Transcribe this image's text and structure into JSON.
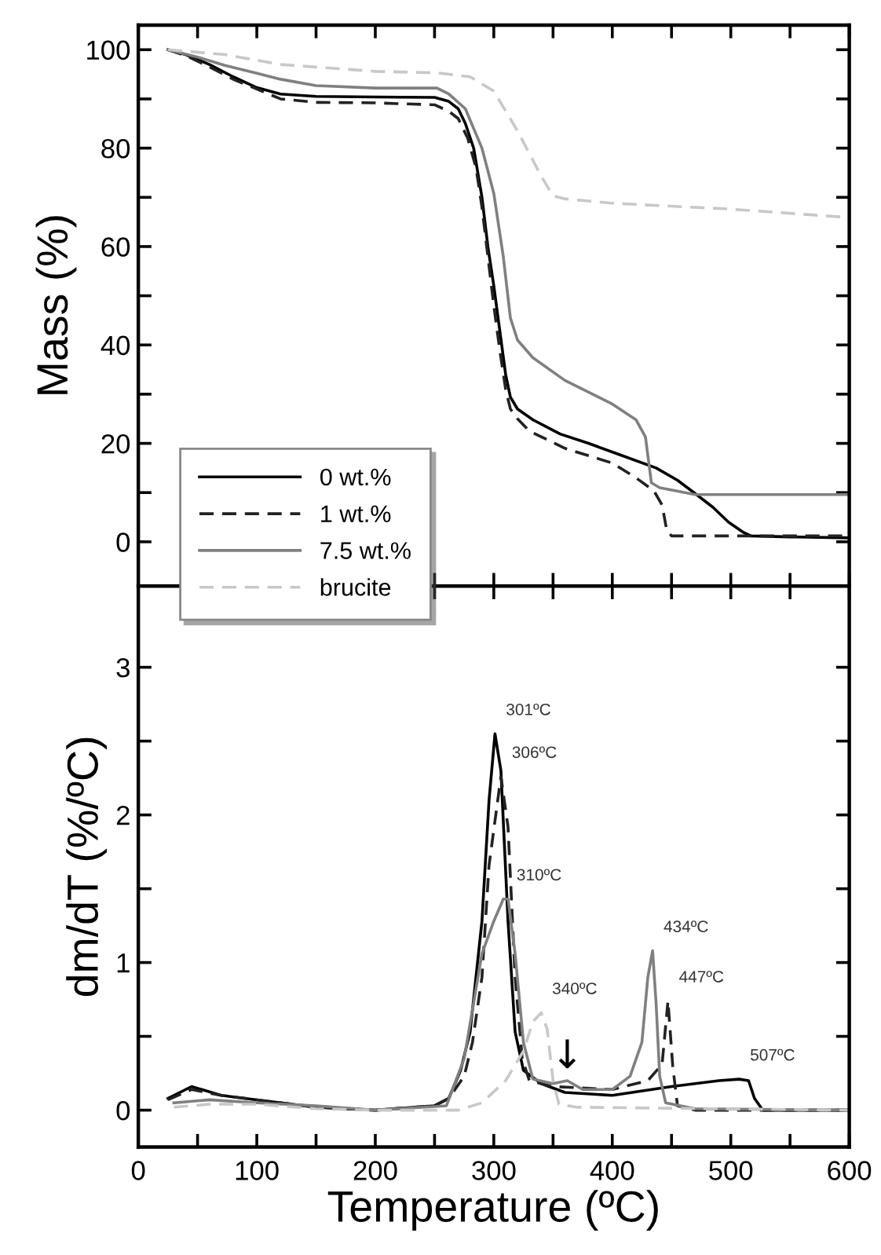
{
  "chart_data": [
    {
      "type": "line",
      "ylabel": "Mass (%)",
      "xlim": [
        0,
        600
      ],
      "ylim": [
        -9,
        105
      ],
      "xticks": [
        0,
        {
          "value": 50,
          "label": null
        },
        100,
        {
          "value": 150,
          "label": null
        },
        200,
        {
          "value": 250,
          "label": null
        },
        300,
        {
          "value": 350,
          "label": null
        },
        400,
        {
          "value": 450,
          "label": null
        },
        500,
        {
          "value": 550,
          "label": null
        },
        600
      ],
      "yticks": [
        0,
        {
          "value": 10,
          "label": null
        },
        20,
        {
          "value": 30,
          "label": null
        },
        40,
        {
          "value": 50,
          "label": null
        },
        60,
        {
          "value": 70,
          "label": null
        },
        80,
        {
          "value": 90,
          "label": null
        },
        100
      ],
      "tick_labels": "y",
      "legend": "bottom left",
      "grid": false,
      "marker": "none",
      "series": [
        {
          "name": "0 wt.%",
          "color": "#000000",
          "line_style": "solid",
          "x": [
            25,
            40,
            60,
            80,
            100,
            120,
            150,
            200,
            250,
            262,
            270,
            276,
            283,
            290,
            295,
            300,
            305,
            310,
            314,
            320,
            333,
            356,
            380,
            404,
            437,
            455,
            470,
            485,
            498,
            510,
            517,
            550,
            600
          ],
          "values": [
            100,
            99,
            97,
            94.5,
            92.3,
            91,
            90.5,
            90.4,
            90.3,
            89.5,
            88,
            85,
            80,
            70,
            60,
            52,
            43,
            34,
            29.4,
            27,
            24.8,
            21.9,
            20,
            17.9,
            15,
            12.5,
            9.8,
            7,
            4,
            2,
            1.2,
            1,
            0.8
          ]
        },
        {
          "name": "1 wt.%",
          "color": "#222222",
          "line_style": "dashed",
          "x": [
            25,
            40,
            60,
            80,
            100,
            120,
            150,
            200,
            250,
            262,
            270,
            278,
            285,
            290,
            295,
            300,
            305,
            310,
            314,
            320,
            330,
            360,
            400,
            420,
            435,
            442,
            446,
            450,
            500,
            600
          ],
          "values": [
            100,
            98.8,
            96.5,
            94,
            92,
            90,
            89.3,
            89.2,
            88.8,
            87.5,
            86,
            82,
            76,
            68,
            58,
            48,
            39,
            31,
            27,
            25,
            22.5,
            19,
            16,
            13,
            10.4,
            7.5,
            2.3,
            1.2,
            1.2,
            1.2
          ]
        },
        {
          "name": "7.5 wt.%",
          "color": "#808080",
          "line_style": "solid",
          "x": [
            25,
            50,
            73,
            100,
            120,
            150,
            200,
            252,
            262,
            276,
            290,
            300,
            308,
            314,
            320,
            333,
            360,
            400,
            420,
            428,
            433,
            440,
            470,
            600
          ],
          "values": [
            100,
            98.5,
            96.8,
            95.2,
            94,
            92.7,
            92.2,
            92.2,
            91,
            88,
            80,
            70.8,
            58,
            45.5,
            41,
            37.4,
            32.8,
            28,
            24.8,
            21.3,
            12,
            11,
            9.6,
            9.6
          ]
        },
        {
          "name": "brucite",
          "color": "#c8c8c8",
          "line_style": "dashed",
          "x": [
            25,
            73,
            120,
            200,
            252,
            280,
            300,
            320,
            340,
            350,
            360,
            400,
            500,
            600
          ],
          "values": [
            100,
            99,
            97,
            95.6,
            95.3,
            94.5,
            91.6,
            83.5,
            74.3,
            70.3,
            69.7,
            68.8,
            67.6,
            65.9
          ]
        }
      ]
    },
    {
      "type": "line",
      "xlabel": "Temperature (ºC)",
      "ylabel": "dm/dT (%/ºC)",
      "xlim": [
        0,
        600
      ],
      "ylim": [
        -0.25,
        3.55
      ],
      "xticks": [
        0,
        {
          "value": 50,
          "label": null
        },
        100,
        {
          "value": 150,
          "label": null
        },
        200,
        {
          "value": 250,
          "label": null
        },
        300,
        {
          "value": 350,
          "label": null
        },
        400,
        {
          "value": 450,
          "label": null
        },
        500,
        {
          "value": 550,
          "label": null
        },
        600
      ],
      "yticks": [
        0,
        {
          "value": 0.5,
          "label": null
        },
        1,
        {
          "value": 1.5,
          "label": null
        },
        2,
        {
          "value": 2.5,
          "label": null
        },
        3
      ],
      "grid": false,
      "marker": "none",
      "series": [
        {
          "color": "#000000",
          "line_style": "solid",
          "x": [
            25,
            45,
            70,
            100,
            150,
            200,
            250,
            262,
            272,
            280,
            290,
            296,
            301,
            306,
            312,
            318,
            325,
            340,
            360,
            400,
            450,
            490,
            507,
            515,
            520,
            527,
            600
          ],
          "values": [
            0.08,
            0.16,
            0.1,
            0.07,
            0.02,
            0,
            0.03,
            0.08,
            0.27,
            0.53,
            1.28,
            2.1,
            2.55,
            2.3,
            1.28,
            0.53,
            0.27,
            0.18,
            0.12,
            0.1,
            0.16,
            0.2,
            0.21,
            0.2,
            0.08,
            0,
            0
          ]
        },
        {
          "color": "#222222",
          "line_style": "dashed",
          "x": [
            25,
            45,
            70,
            100,
            150,
            200,
            250,
            262,
            275,
            282,
            290,
            296,
            306,
            312,
            318,
            324,
            330,
            350,
            400,
            430,
            442,
            447,
            451,
            455,
            470,
            600
          ],
          "values": [
            0.07,
            0.14,
            0.1,
            0.07,
            0.02,
            0,
            0.03,
            0.08,
            0.23,
            0.46,
            0.9,
            1.66,
            2.26,
            1.92,
            0.9,
            0.35,
            0.2,
            0.16,
            0.14,
            0.2,
            0.31,
            0.74,
            0.3,
            0.03,
            0,
            0
          ]
        },
        {
          "color": "#808080",
          "line_style": "solid",
          "x": [
            30,
            60,
            100,
            150,
            200,
            260,
            275,
            290,
            300,
            308,
            312,
            318,
            325,
            333,
            350,
            362,
            375,
            400,
            415,
            425,
            430,
            434,
            437,
            440,
            445,
            470,
            600
          ],
          "values": [
            0.05,
            0.07,
            0.05,
            0.03,
            0,
            0.03,
            0.35,
            1.06,
            1.28,
            1.43,
            1.43,
            1.06,
            0.46,
            0.21,
            0.18,
            0.2,
            0.14,
            0.14,
            0.23,
            0.46,
            0.9,
            1.08,
            0.72,
            0.23,
            0.05,
            0.01,
            0
          ]
        },
        {
          "color": "#c8c8c8",
          "line_style": "dashed",
          "x": [
            30,
            60,
            100,
            150,
            200,
            270,
            290,
            310,
            325,
            333,
            340,
            345,
            350,
            355,
            370,
            600
          ],
          "values": [
            0.02,
            0.04,
            0.04,
            0.01,
            0,
            0,
            0.05,
            0.2,
            0.4,
            0.6,
            0.66,
            0.55,
            0.2,
            0.04,
            0.02,
            0
          ]
        }
      ],
      "annotations": [
        {
          "text": "301ºC",
          "x": 301,
          "y": 2.55
        },
        {
          "text": "306ºC",
          "x": 306,
          "y": 2.26
        },
        {
          "text": "310ºC",
          "x": 310,
          "y": 1.43
        },
        {
          "text": "340ºC",
          "x": 340,
          "y": 0.66
        },
        {
          "text": "434ºC",
          "x": 434,
          "y": 1.08
        },
        {
          "text": "447ºC",
          "x": 447,
          "y": 0.74
        },
        {
          "text": "507ºC",
          "x": 507,
          "y": 0.21
        },
        {
          "text": "↓",
          "x": 362,
          "y": 0.2
        }
      ]
    }
  ]
}
